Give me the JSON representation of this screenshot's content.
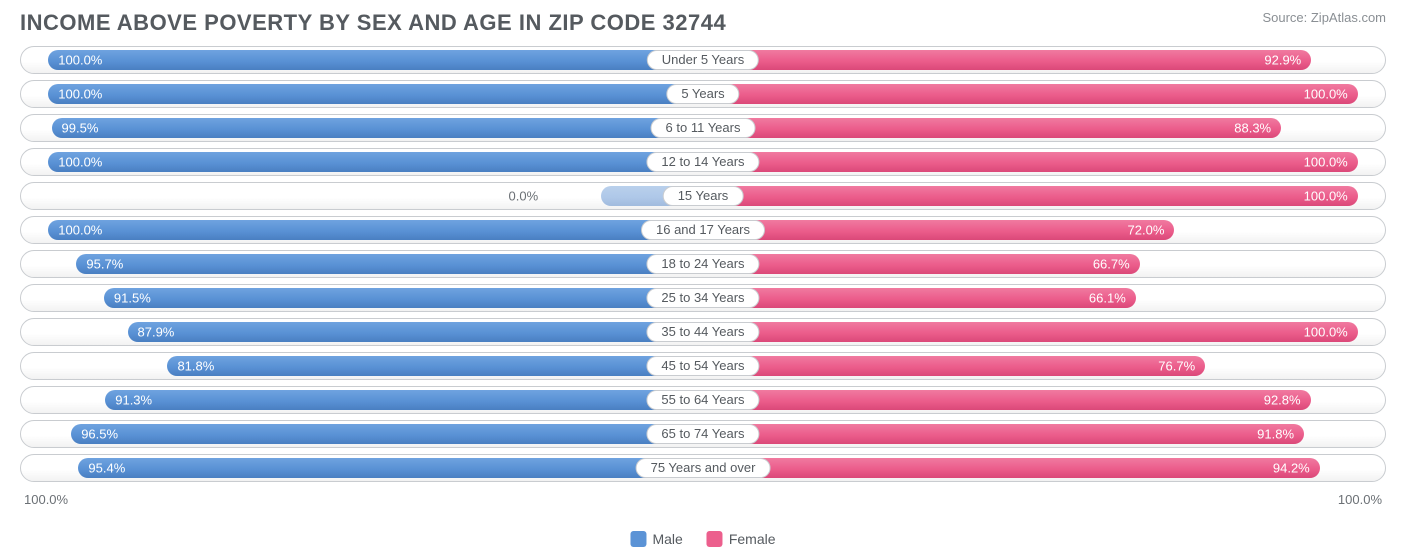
{
  "title": "INCOME ABOVE POVERTY BY SEX AND AGE IN ZIP CODE 32744",
  "source": "Source: ZipAtlas.com",
  "axis": {
    "left": "100.0%",
    "right": "100.0%"
  },
  "legend": {
    "male": {
      "label": "Male",
      "color": "#5b93d6"
    },
    "female": {
      "label": "Female",
      "color": "#ec5f8d"
    }
  },
  "colors": {
    "male_bar": "#5b93d6",
    "female_bar": "#ec5f8d",
    "track_border": "#c9ccd0",
    "text": "#555a5f"
  },
  "rows": [
    {
      "category": "Under 5 Years",
      "male": 100.0,
      "female": 92.9
    },
    {
      "category": "5 Years",
      "male": 100.0,
      "female": 100.0
    },
    {
      "category": "6 to 11 Years",
      "male": 99.5,
      "female": 88.3
    },
    {
      "category": "12 to 14 Years",
      "male": 100.0,
      "female": 100.0
    },
    {
      "category": "15 Years",
      "male": 0.0,
      "female": 100.0,
      "male_residual": 15
    },
    {
      "category": "16 and 17 Years",
      "male": 100.0,
      "female": 72.0
    },
    {
      "category": "18 to 24 Years",
      "male": 95.7,
      "female": 66.7
    },
    {
      "category": "25 to 34 Years",
      "male": 91.5,
      "female": 66.1
    },
    {
      "category": "35 to 44 Years",
      "male": 87.9,
      "female": 100.0
    },
    {
      "category": "45 to 54 Years",
      "male": 81.8,
      "female": 76.7
    },
    {
      "category": "55 to 64 Years",
      "male": 91.3,
      "female": 92.8
    },
    {
      "category": "65 to 74 Years",
      "male": 96.5,
      "female": 91.8
    },
    {
      "category": "75 Years and over",
      "male": 95.4,
      "female": 94.2
    }
  ]
}
